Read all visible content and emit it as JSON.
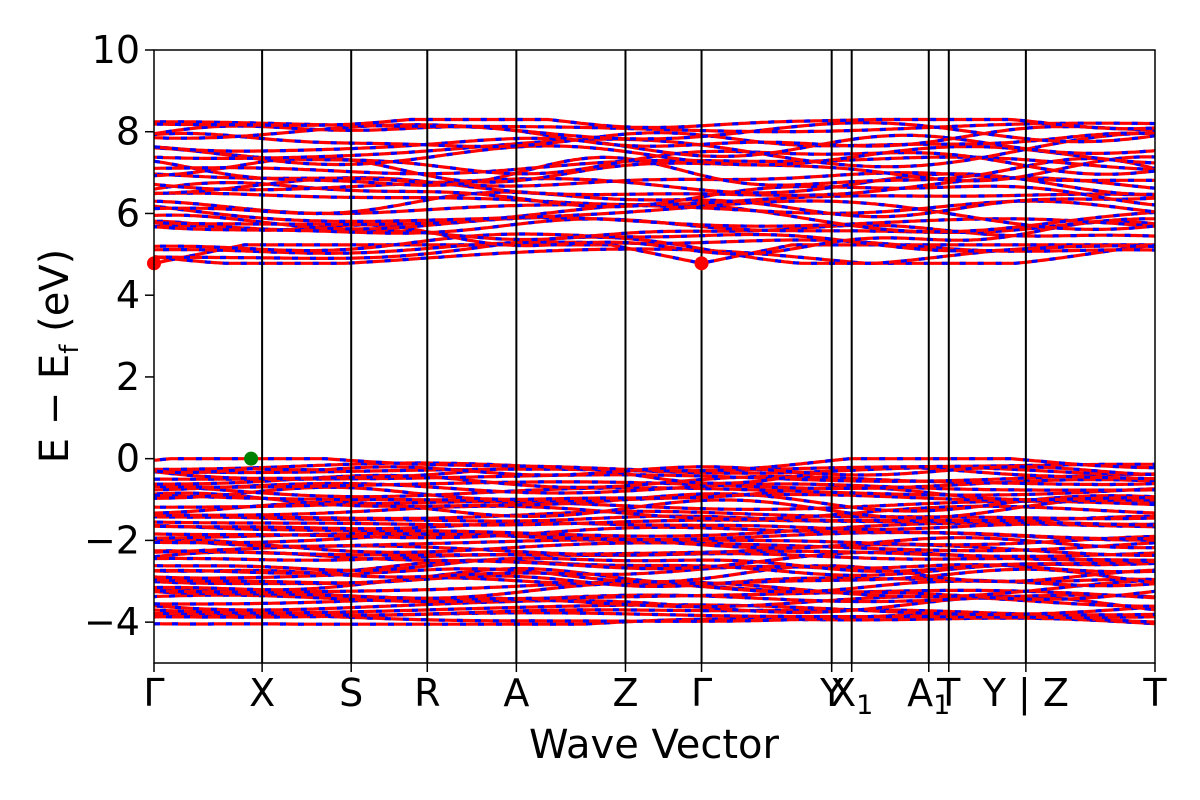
{
  "chart_data": {
    "type": "line",
    "title": "",
    "xlabel": "Wave Vector",
    "ylabel": "E − E_f (eV)",
    "ylabel_parts": [
      "E − E",
      "f",
      " (eV)"
    ],
    "ylim": [
      -5,
      10
    ],
    "yticks": [
      -4,
      -2,
      0,
      2,
      4,
      6,
      8,
      10
    ],
    "ytick_labels": [
      "−4",
      "−2",
      "0",
      "2",
      "4",
      "6",
      "8",
      "10"
    ],
    "xlim": [
      0,
      1
    ],
    "kpoints": [
      {
        "label": "Γ",
        "sub": "",
        "x": 0.0
      },
      {
        "label": "X",
        "sub": "",
        "x": 0.108
      },
      {
        "label": "S",
        "sub": "",
        "x": 0.197
      },
      {
        "label": "R",
        "sub": "",
        "x": 0.273
      },
      {
        "label": "A",
        "sub": "",
        "x": 0.362
      },
      {
        "label": "Z",
        "sub": "",
        "x": 0.471
      },
      {
        "label": "Γ",
        "sub": "",
        "x": 0.547
      },
      {
        "label": "Y",
        "sub": "",
        "x": 0.677
      },
      {
        "label": "X",
        "sub": "1",
        "x": 0.697
      },
      {
        "label": "A",
        "sub": "1",
        "x": 0.774
      },
      {
        "label": "T",
        "sub": "",
        "x": 0.794
      },
      {
        "label": "Y | Z",
        "sub": "",
        "x": 0.871
      },
      {
        "label": "T",
        "sub": "",
        "x": 1.0
      }
    ],
    "band_groups": {
      "conduction": {
        "min": 4.78,
        "max": 8.3
      },
      "valence": {
        "min": -4.05,
        "max": 0.0
      }
    },
    "series": [
      {
        "name": "spin-up",
        "color": "#ff0000"
      },
      {
        "name": "spin-down",
        "color": "#0000ff"
      }
    ],
    "markers": [
      {
        "name": "CBM",
        "x": 0.0,
        "y": 4.78,
        "color": "#ff0000"
      },
      {
        "name": "CBM",
        "x": 0.547,
        "y": 4.78,
        "color": "#ff0000"
      },
      {
        "name": "VBM",
        "x": 0.097,
        "y": 0.0,
        "color": "#008000"
      }
    ]
  }
}
